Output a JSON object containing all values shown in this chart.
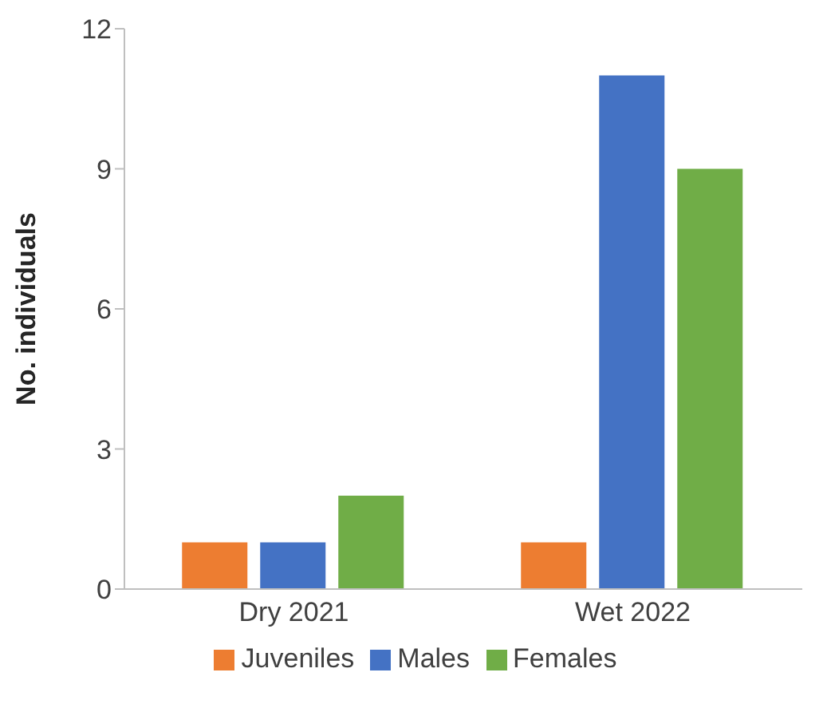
{
  "chart_data": {
    "type": "bar",
    "ylabel": "No. individuals",
    "categories": [
      "Dry 2021",
      "Wet 2022"
    ],
    "series": [
      {
        "name": "Juveniles",
        "color": "#ed7d31",
        "values": [
          1,
          1
        ]
      },
      {
        "name": "Males",
        "color": "#4472c4",
        "values": [
          1,
          11
        ]
      },
      {
        "name": "Females",
        "color": "#70ad47",
        "values": [
          2,
          9
        ]
      }
    ],
    "ylim": [
      0,
      12
    ],
    "yticks": [
      0,
      3,
      6,
      9,
      12
    ],
    "grid": false,
    "legend": "bottom"
  }
}
